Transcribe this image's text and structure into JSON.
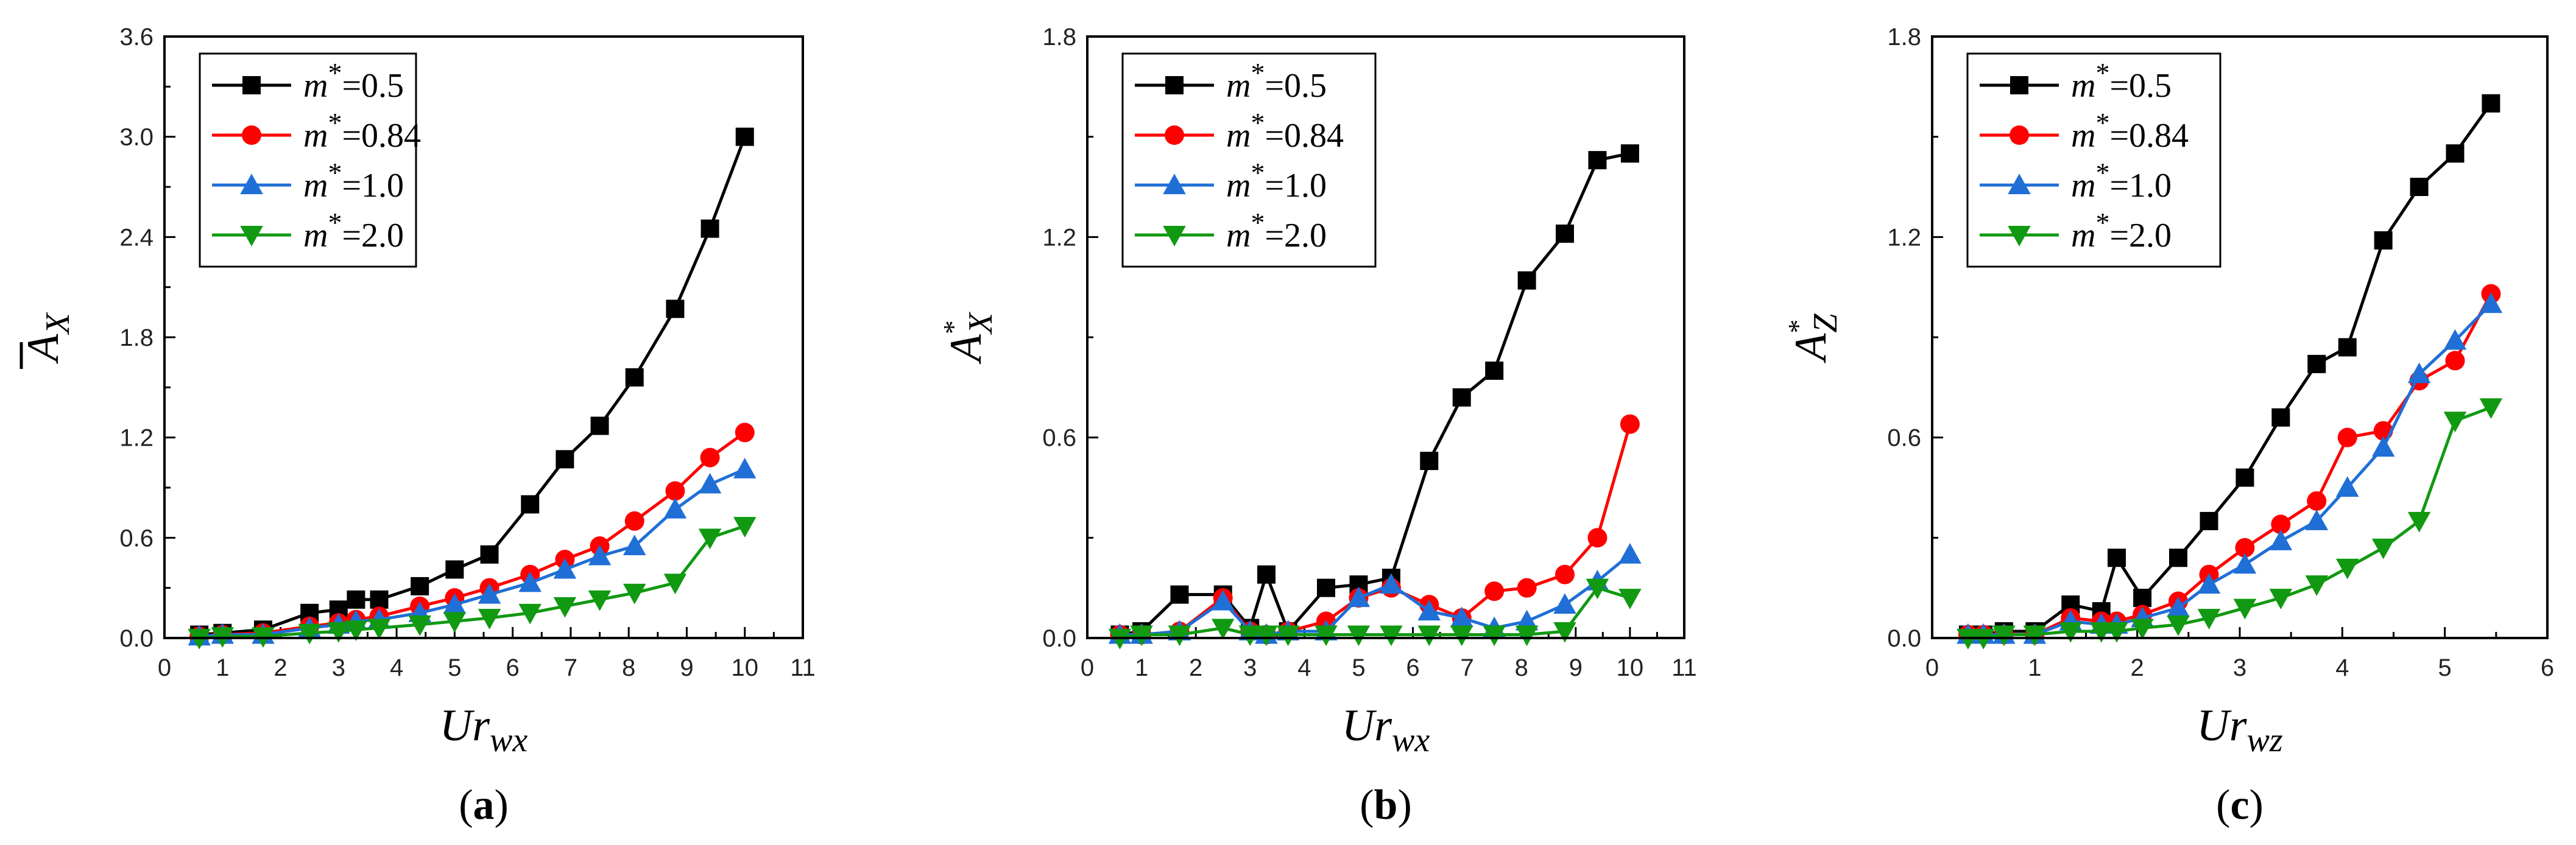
{
  "chart_data": [
    {
      "type": "line",
      "panel_label": "(a)",
      "ylabel": {
        "main": "A",
        "sub": "X",
        "over": "bar"
      },
      "xlabel": {
        "main": "Ur",
        "sub": "wx"
      },
      "xlim": [
        0,
        11
      ],
      "ylim": [
        0,
        3.6
      ],
      "xticks": [
        0,
        1,
        2,
        3,
        4,
        5,
        6,
        7,
        8,
        9,
        10,
        11
      ],
      "yticks": [
        0,
        0.6,
        1.2,
        1.8,
        2.4,
        3.0,
        3.6
      ],
      "ytick_labels": [
        "0.0",
        "0.6",
        "1.2",
        "1.8",
        "2.4",
        "3.0",
        "3.6"
      ],
      "legend_position": "top-left",
      "series": [
        {
          "name": "m*=0.5",
          "legend_main": "m",
          "legend_sup": "*",
          "legend_value": "=0.5",
          "color": "#000000",
          "marker": "square",
          "x": [
            0.6,
            1.0,
            1.7,
            2.5,
            3.0,
            3.3,
            3.7,
            4.4,
            5.0,
            5.6,
            6.3,
            6.9,
            7.5,
            8.1,
            8.8,
            9.4,
            10.0
          ],
          "y": [
            0.02,
            0.03,
            0.05,
            0.15,
            0.17,
            0.23,
            0.23,
            0.31,
            0.41,
            0.5,
            0.8,
            1.07,
            1.27,
            1.56,
            1.97,
            2.45,
            3.0
          ]
        },
        {
          "name": "m*=0.84",
          "legend_main": "m",
          "legend_sup": "*",
          "legend_value": "=0.84",
          "color": "#ff0000",
          "marker": "circle",
          "x": [
            0.6,
            1.0,
            1.7,
            2.5,
            3.0,
            3.3,
            3.7,
            4.4,
            5.0,
            5.6,
            6.3,
            6.9,
            7.5,
            8.1,
            8.8,
            9.4,
            10.0
          ],
          "y": [
            0.01,
            0.02,
            0.03,
            0.07,
            0.09,
            0.11,
            0.13,
            0.19,
            0.24,
            0.3,
            0.38,
            0.47,
            0.55,
            0.7,
            0.88,
            1.08,
            1.23
          ]
        },
        {
          "name": "m*=1.0",
          "legend_main": "m",
          "legend_sup": "*",
          "legend_value": "=1.0",
          "color": "#1f6fd6",
          "marker": "triangle-up",
          "x": [
            0.6,
            1.0,
            1.7,
            2.5,
            3.0,
            3.3,
            3.7,
            4.4,
            5.0,
            5.6,
            6.3,
            6.9,
            7.5,
            8.1,
            8.8,
            9.4,
            10.0
          ],
          "y": [
            0.01,
            0.02,
            0.02,
            0.06,
            0.08,
            0.1,
            0.11,
            0.15,
            0.2,
            0.26,
            0.33,
            0.41,
            0.49,
            0.55,
            0.77,
            0.92,
            1.01
          ]
        },
        {
          "name": "m*=2.0",
          "legend_main": "m",
          "legend_sup": "*",
          "legend_value": "=2.0",
          "color": "#119911",
          "marker": "triangle-down",
          "x": [
            0.6,
            1.0,
            1.7,
            2.5,
            3.0,
            3.3,
            3.7,
            4.4,
            5.0,
            5.6,
            6.3,
            6.9,
            7.5,
            8.1,
            8.8,
            9.4,
            10.0
          ],
          "y": [
            0.0,
            0.01,
            0.01,
            0.03,
            0.04,
            0.05,
            0.06,
            0.08,
            0.1,
            0.12,
            0.15,
            0.19,
            0.23,
            0.27,
            0.33,
            0.6,
            0.67
          ]
        }
      ]
    },
    {
      "type": "line",
      "panel_label": "(b)",
      "ylabel": {
        "main": "A",
        "sub": "X",
        "sup": "*"
      },
      "xlabel": {
        "main": "Ur",
        "sub": "wx"
      },
      "xlim": [
        0,
        11
      ],
      "ylim": [
        0,
        1.8
      ],
      "xticks": [
        0,
        1,
        2,
        3,
        4,
        5,
        6,
        7,
        8,
        9,
        10,
        11
      ],
      "yticks": [
        0,
        0.6,
        1.2,
        1.8
      ],
      "ytick_labels": [
        "0.0",
        "0.6",
        "1.2",
        "1.8"
      ],
      "legend_position": "top-left",
      "series": [
        {
          "name": "m*=0.5",
          "legend_main": "m",
          "legend_sup": "*",
          "legend_value": "=0.5",
          "color": "#000000",
          "marker": "square",
          "x": [
            0.6,
            1.0,
            1.7,
            2.5,
            3.0,
            3.3,
            3.7,
            4.4,
            5.0,
            5.6,
            6.3,
            6.9,
            7.5,
            8.1,
            8.8,
            9.4,
            10.0
          ],
          "y": [
            0.01,
            0.02,
            0.13,
            0.13,
            0.03,
            0.19,
            0.02,
            0.15,
            0.16,
            0.18,
            0.53,
            0.72,
            0.8,
            1.07,
            1.21,
            1.43,
            1.45
          ]
        },
        {
          "name": "m*=0.84",
          "legend_main": "m",
          "legend_sup": "*",
          "legend_value": "=0.84",
          "color": "#ff0000",
          "marker": "circle",
          "x": [
            0.6,
            1.0,
            1.7,
            2.5,
            3.0,
            3.3,
            3.7,
            4.4,
            5.0,
            5.6,
            6.3,
            6.9,
            7.5,
            8.1,
            8.8,
            9.4,
            10.0
          ],
          "y": [
            0.01,
            0.01,
            0.02,
            0.12,
            0.02,
            0.01,
            0.02,
            0.05,
            0.12,
            0.15,
            0.1,
            0.06,
            0.14,
            0.15,
            0.19,
            0.3,
            0.64
          ]
        },
        {
          "name": "m*=1.0",
          "legend_main": "m",
          "legend_sup": "*",
          "legend_value": "=1.0",
          "color": "#1f6fd6",
          "marker": "triangle-up",
          "x": [
            0.6,
            1.0,
            1.7,
            2.5,
            3.0,
            3.3,
            3.7,
            4.4,
            5.0,
            5.6,
            6.3,
            6.9,
            7.5,
            8.1,
            8.8,
            9.4,
            10.0
          ],
          "y": [
            0.01,
            0.01,
            0.02,
            0.11,
            0.02,
            0.01,
            0.02,
            0.02,
            0.12,
            0.16,
            0.08,
            0.06,
            0.03,
            0.05,
            0.1,
            0.17,
            0.25
          ]
        },
        {
          "name": "m*=2.0",
          "legend_main": "m",
          "legend_sup": "*",
          "legend_value": "=2.0",
          "color": "#119911",
          "marker": "triangle-down",
          "x": [
            0.6,
            1.0,
            1.7,
            2.5,
            3.0,
            3.3,
            3.7,
            4.4,
            5.0,
            5.6,
            6.3,
            6.9,
            7.5,
            8.1,
            8.8,
            9.4,
            10.0
          ],
          "y": [
            0.0,
            0.01,
            0.01,
            0.03,
            0.01,
            0.01,
            0.01,
            0.01,
            0.01,
            0.01,
            0.01,
            0.01,
            0.01,
            0.01,
            0.02,
            0.15,
            0.12
          ]
        }
      ]
    },
    {
      "type": "line",
      "panel_label": "(c)",
      "ylabel": {
        "main": "A",
        "sub": "Z",
        "sup": "*"
      },
      "xlabel": {
        "main": "Ur",
        "sub": "wz"
      },
      "xlim": [
        0,
        6
      ],
      "ylim": [
        0,
        1.8
      ],
      "xticks": [
        0,
        1,
        2,
        3,
        4,
        5,
        6
      ],
      "yticks": [
        0,
        0.6,
        1.2,
        1.8
      ],
      "ytick_labels": [
        "0.0",
        "0.6",
        "1.2",
        "1.8"
      ],
      "legend_position": "top-left",
      "series": [
        {
          "name": "m*=0.5",
          "legend_main": "m",
          "legend_sup": "*",
          "legend_value": "=0.5",
          "color": "#000000",
          "marker": "square",
          "x": [
            0.35,
            0.5,
            0.7,
            1.0,
            1.35,
            1.65,
            1.8,
            2.05,
            2.4,
            2.7,
            3.05,
            3.4,
            3.75,
            4.05,
            4.4,
            4.75,
            5.1,
            5.45
          ],
          "y": [
            0.01,
            0.01,
            0.02,
            0.02,
            0.1,
            0.08,
            0.24,
            0.12,
            0.24,
            0.35,
            0.48,
            0.66,
            0.82,
            0.87,
            1.19,
            1.35,
            1.45,
            1.6
          ]
        },
        {
          "name": "m*=0.84",
          "legend_main": "m",
          "legend_sup": "*",
          "legend_value": "=0.84",
          "color": "#ff0000",
          "marker": "circle",
          "x": [
            0.35,
            0.5,
            0.7,
            1.0,
            1.35,
            1.65,
            1.8,
            2.05,
            2.4,
            2.7,
            3.05,
            3.4,
            3.75,
            4.05,
            4.4,
            4.75,
            5.1,
            5.45
          ],
          "y": [
            0.01,
            0.01,
            0.01,
            0.01,
            0.06,
            0.05,
            0.05,
            0.07,
            0.11,
            0.19,
            0.27,
            0.34,
            0.41,
            0.6,
            0.62,
            0.77,
            0.83,
            1.03
          ]
        },
        {
          "name": "m*=1.0",
          "legend_main": "m",
          "legend_sup": "*",
          "legend_value": "=1.0",
          "color": "#1f6fd6",
          "marker": "triangle-up",
          "x": [
            0.35,
            0.5,
            0.7,
            1.0,
            1.35,
            1.65,
            1.8,
            2.05,
            2.4,
            2.7,
            3.05,
            3.4,
            3.75,
            4.05,
            4.4,
            4.75,
            5.1,
            5.45
          ],
          "y": [
            0.01,
            0.01,
            0.01,
            0.01,
            0.05,
            0.04,
            0.04,
            0.06,
            0.09,
            0.16,
            0.22,
            0.29,
            0.35,
            0.45,
            0.57,
            0.79,
            0.89,
            1.0
          ]
        },
        {
          "name": "m*=2.0",
          "legend_main": "m",
          "legend_sup": "*",
          "legend_value": "=2.0",
          "color": "#119911",
          "marker": "triangle-down",
          "x": [
            0.35,
            0.5,
            0.7,
            1.0,
            1.35,
            1.65,
            1.8,
            2.05,
            2.4,
            2.7,
            3.05,
            3.4,
            3.75,
            4.05,
            4.4,
            4.75,
            5.1,
            5.45
          ],
          "y": [
            0.0,
            0.0,
            0.01,
            0.01,
            0.02,
            0.02,
            0.02,
            0.03,
            0.04,
            0.06,
            0.09,
            0.12,
            0.16,
            0.21,
            0.27,
            0.35,
            0.65,
            0.69
          ]
        }
      ]
    }
  ]
}
